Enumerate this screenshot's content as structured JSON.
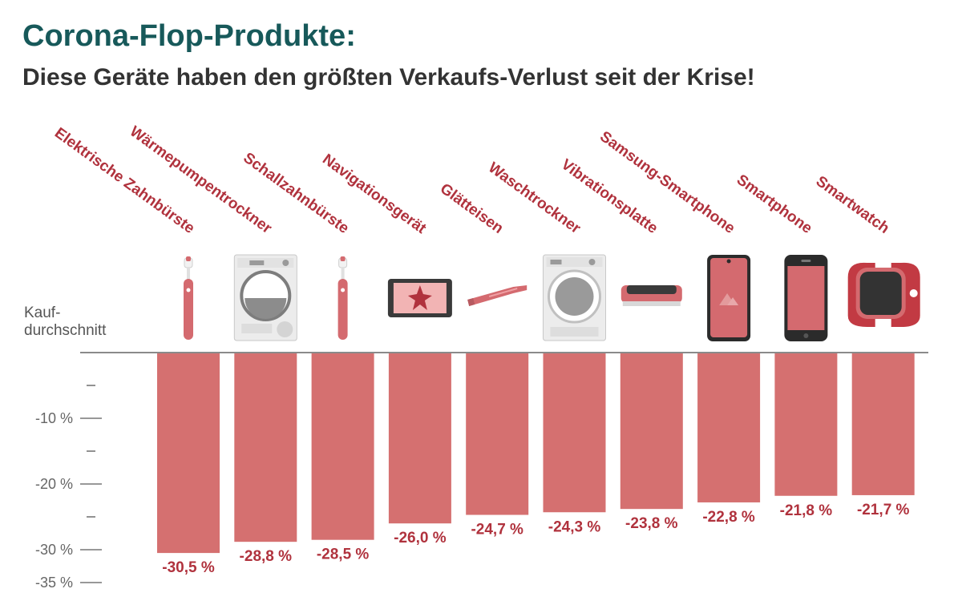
{
  "header": {
    "title": "Corona-Flop-Produkte:",
    "subtitle": "Diese Geräte haben den größten Verkaufs-Verlust seit der Krise!"
  },
  "axis_caption": [
    "Kauf-",
    "durchschnitt"
  ],
  "colors": {
    "bar": "#d57070",
    "label": "#b0323d",
    "title": "#17595a",
    "device_accent": "#d46a6f"
  },
  "chart_data": {
    "type": "bar",
    "categories": [
      "Elektrische Zahnbürste",
      "Wärmepumpentrockner",
      "Schallzahnbürste",
      "Navigationsgerät",
      "Glätteisen",
      "Waschtrockner",
      "Vibrationsplatte",
      "Samsung-Smartphone",
      "Smartphone",
      "Smartwatch"
    ],
    "values": [
      -30.5,
      -28.8,
      -28.5,
      -26.0,
      -24.7,
      -24.3,
      -23.8,
      -22.8,
      -21.8,
      -21.7
    ],
    "value_labels": [
      "-30,5 %",
      "-28,8 %",
      "-28,5 %",
      "-26,0 %",
      "-24,7 %",
      "-24,3 %",
      "-23,8 %",
      "-22,8 %",
      "-21,8 %",
      "-21,7 %"
    ],
    "icons": [
      "toothbrush-icon",
      "dryer-icon",
      "toothbrush-icon",
      "navigation-device-icon",
      "hair-straightener-icon",
      "washer-dryer-icon",
      "vibration-plate-icon",
      "samsung-smartphone-icon",
      "smartphone-icon",
      "smartwatch-icon"
    ],
    "ylim": [
      -35,
      0
    ],
    "yticks": [
      {
        "value": -5,
        "label": ""
      },
      {
        "value": -10,
        "label": "-10 %"
      },
      {
        "value": -15,
        "label": ""
      },
      {
        "value": -20,
        "label": "-20 %"
      },
      {
        "value": -25,
        "label": ""
      },
      {
        "value": -30,
        "label": "-30 %"
      },
      {
        "value": -35,
        "label": "-35 %"
      }
    ],
    "grid": false,
    "legend": "none"
  }
}
